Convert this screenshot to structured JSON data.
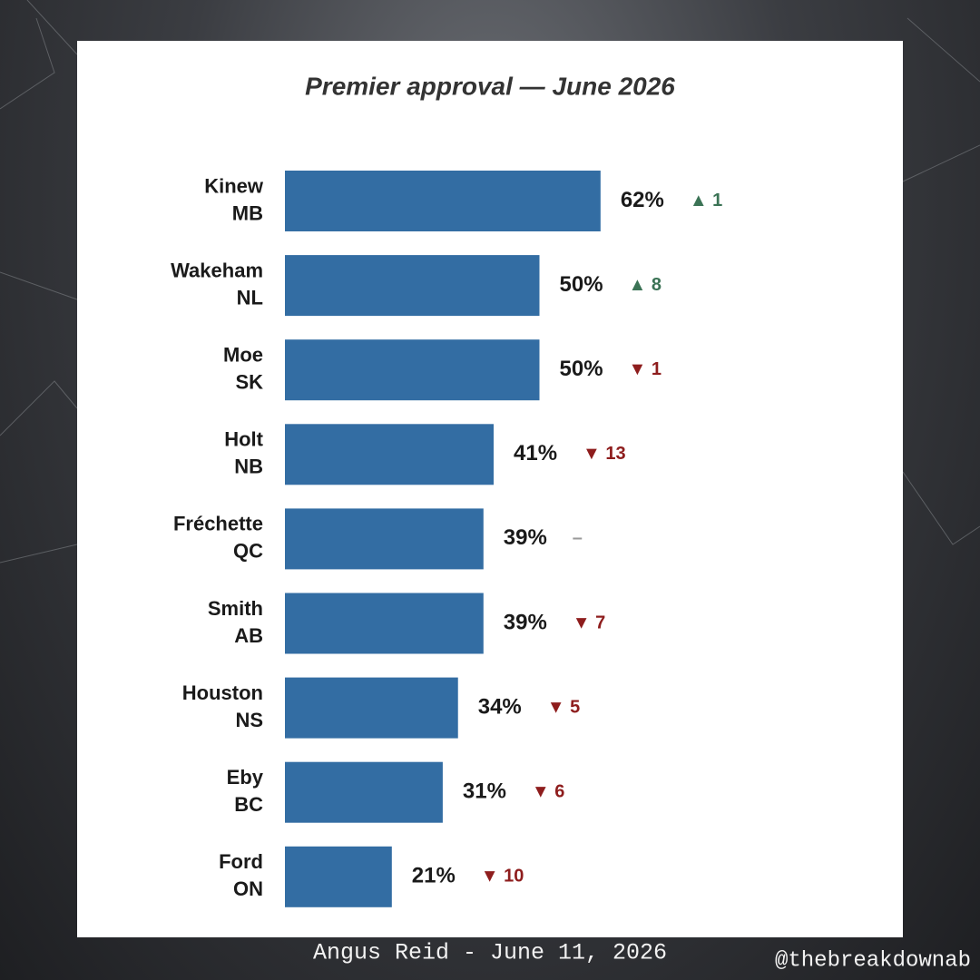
{
  "chart_data": {
    "type": "bar",
    "orientation": "horizontal",
    "title": "Premier approval — June 2026",
    "categories": [
      "Kinew",
      "Wakeham",
      "Moe",
      "Holt",
      "Fréchette",
      "Smith",
      "Houston",
      "Eby",
      "Ford"
    ],
    "provinces": [
      "MB",
      "NL",
      "SK",
      "NB",
      "QC",
      "AB",
      "NS",
      "BC",
      "ON"
    ],
    "values": [
      62,
      50,
      50,
      41,
      39,
      39,
      34,
      31,
      21
    ],
    "value_labels": [
      "62%",
      "50%",
      "50%",
      "41%",
      "39%",
      "39%",
      "34%",
      "31%",
      "21%"
    ],
    "change": [
      1,
      8,
      -1,
      -13,
      0,
      -7,
      -5,
      -6,
      -10
    ],
    "change_labels": [
      "▲ 1",
      "▲ 8",
      "▼ 1",
      "▼ 13",
      "–",
      "▼ 7",
      "▼ 5",
      "▼ 6",
      "▼ 10"
    ],
    "change_colors": {
      "up": "#3b7355",
      "down": "#8e1d1d",
      "flat": "#9a9a9a"
    },
    "color": "#336da3",
    "xlim": [
      0,
      100
    ],
    "source": "Angus Reid - June 11, 2026",
    "handle": "@thebreakdownab"
  }
}
